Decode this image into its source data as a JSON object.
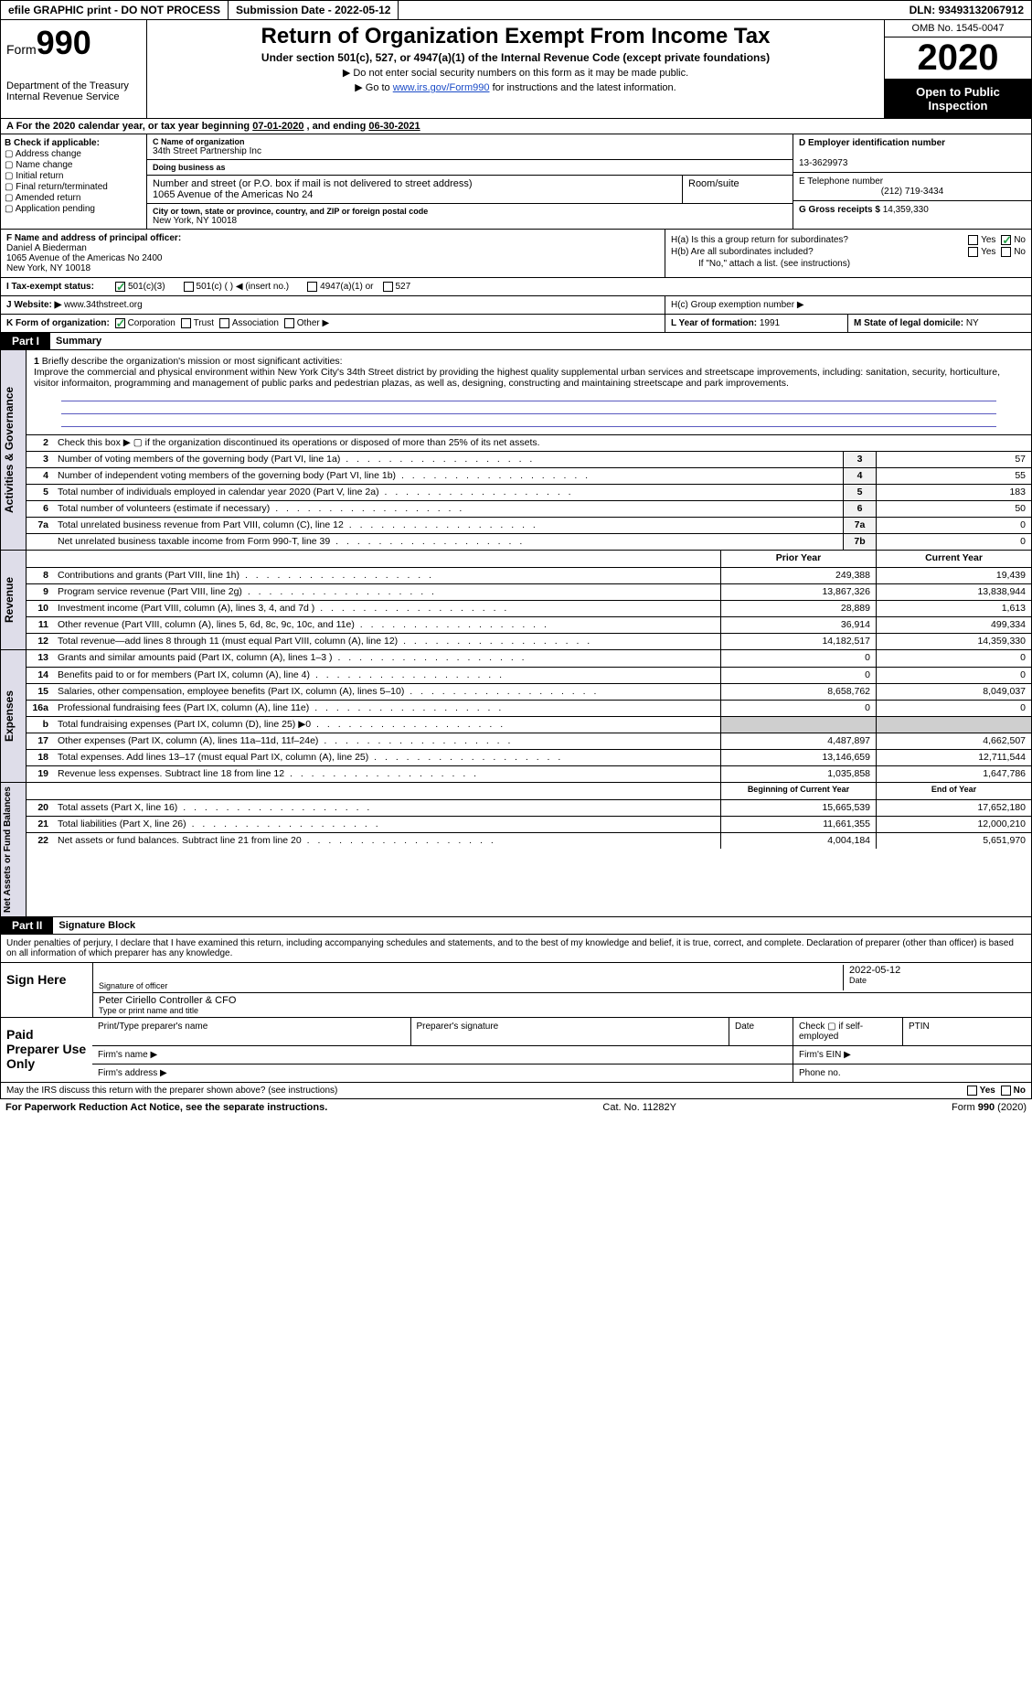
{
  "topbar": {
    "efile": "efile GRAPHIC print - DO NOT PROCESS",
    "submission_label": "Submission Date - ",
    "submission_date": "2022-05-12",
    "dln_label": "DLN: ",
    "dln": "93493132067912"
  },
  "header": {
    "form_label": "Form",
    "form_num": "990",
    "dept1": "Department of the Treasury",
    "dept2": "Internal Revenue Service",
    "title": "Return of Organization Exempt From Income Tax",
    "sub": "Under section 501(c), 527, or 4947(a)(1) of the Internal Revenue Code (except private foundations)",
    "note1": "▶ Do not enter social security numbers on this form as it may be made public.",
    "note2_pre": "▶ Go to ",
    "note2_link": "www.irs.gov/Form990",
    "note2_post": " for instructions and the latest information.",
    "omb": "OMB No. 1545-0047",
    "year": "2020",
    "open": "Open to Public Inspection"
  },
  "rowA": {
    "text_pre": "A For the 2020 calendar year, or tax year beginning ",
    "begin": "07-01-2020",
    "mid": " , and ending ",
    "end": "06-30-2021"
  },
  "secB": {
    "label": "B Check if applicable:",
    "items": [
      "Address change",
      "Name change",
      "Initial return",
      "Final return/terminated",
      "Amended return",
      "Application pending"
    ]
  },
  "secC": {
    "name_lbl": "C Name of organization",
    "name": "34th Street Partnership Inc",
    "dba_lbl": "Doing business as",
    "dba": "",
    "street_lbl": "Number and street (or P.O. box if mail is not delivered to street address)",
    "street": "1065 Avenue of the Americas No 24",
    "room_lbl": "Room/suite",
    "city_lbl": "City or town, state or province, country, and ZIP or foreign postal code",
    "city": "New York, NY  10018"
  },
  "secD": {
    "ein_lbl": "D Employer identification number",
    "ein": "13-3629973",
    "tel_lbl": "E Telephone number",
    "tel": "(212) 719-3434",
    "gross_lbl": "G Gross receipts $ ",
    "gross": "14,359,330"
  },
  "secF": {
    "lbl": "F Name and address of principal officer:",
    "name": "Daniel A Biederman",
    "addr1": "1065 Avenue of the Americas No 2400",
    "addr2": "New York, NY  10018"
  },
  "secH": {
    "ha": "H(a)  Is this a group return for subordinates?",
    "hb": "H(b)  Are all subordinates included?",
    "hb_note": "If \"No,\" attach a list. (see instructions)",
    "hc": "H(c)  Group exemption number ▶",
    "yes": "Yes",
    "no": "No"
  },
  "rowI": {
    "lbl": "I  Tax-exempt status:",
    "opt1": "501(c)(3)",
    "opt2": "501(c) (  ) ◀ (insert no.)",
    "opt3": "4947(a)(1) or",
    "opt4": "527"
  },
  "rowJ": {
    "lbl": "J Website: ▶ ",
    "val": "www.34thstreet.org"
  },
  "rowK": {
    "lbl": "K Form of organization:",
    "opts": [
      "Corporation",
      "Trust",
      "Association",
      "Other ▶"
    ],
    "L": "L Year of formation: ",
    "Lval": "1991",
    "M": "M State of legal domicile: ",
    "Mval": "NY"
  },
  "part1": {
    "hdr": "Part I",
    "title": "Summary",
    "q1": "Briefly describe the organization's mission or most significant activities:",
    "mission": "Improve the commercial and physical environment within New York City's 34th Street district by providing the highest quality supplemental urban services and streetscape improvements, including: sanitation, security, horticulture, visitor informaiton, programming and management of public parks and pedestrian plazas, as well as, designing, constructing and maintaining streetscape and park improvements.",
    "q2": "Check this box ▶ ▢  if the organization discontinued its operations or disposed of more than 25% of its net assets.",
    "rows_gov": [
      {
        "n": "3",
        "d": "Number of voting members of the governing body (Part VI, line 1a)",
        "k": "3",
        "v": "57"
      },
      {
        "n": "4",
        "d": "Number of independent voting members of the governing body (Part VI, line 1b)",
        "k": "4",
        "v": "55"
      },
      {
        "n": "5",
        "d": "Total number of individuals employed in calendar year 2020 (Part V, line 2a)",
        "k": "5",
        "v": "183"
      },
      {
        "n": "6",
        "d": "Total number of volunteers (estimate if necessary)",
        "k": "6",
        "v": "50"
      },
      {
        "n": "7a",
        "d": "Total unrelated business revenue from Part VIII, column (C), line 12",
        "k": "7a",
        "v": "0"
      },
      {
        "n": "",
        "d": "Net unrelated business taxable income from Form 990-T, line 39",
        "k": "7b",
        "v": "0"
      }
    ],
    "col_prior": "Prior Year",
    "col_current": "Current Year",
    "rows_rev": [
      {
        "n": "8",
        "d": "Contributions and grants (Part VIII, line 1h)",
        "p": "249,388",
        "c": "19,439"
      },
      {
        "n": "9",
        "d": "Program service revenue (Part VIII, line 2g)",
        "p": "13,867,326",
        "c": "13,838,944"
      },
      {
        "n": "10",
        "d": "Investment income (Part VIII, column (A), lines 3, 4, and 7d )",
        "p": "28,889",
        "c": "1,613"
      },
      {
        "n": "11",
        "d": "Other revenue (Part VIII, column (A), lines 5, 6d, 8c, 9c, 10c, and 11e)",
        "p": "36,914",
        "c": "499,334"
      },
      {
        "n": "12",
        "d": "Total revenue—add lines 8 through 11 (must equal Part VIII, column (A), line 12)",
        "p": "14,182,517",
        "c": "14,359,330"
      }
    ],
    "rows_exp": [
      {
        "n": "13",
        "d": "Grants and similar amounts paid (Part IX, column (A), lines 1–3 )",
        "p": "0",
        "c": "0"
      },
      {
        "n": "14",
        "d": "Benefits paid to or for members (Part IX, column (A), line 4)",
        "p": "0",
        "c": "0"
      },
      {
        "n": "15",
        "d": "Salaries, other compensation, employee benefits (Part IX, column (A), lines 5–10)",
        "p": "8,658,762",
        "c": "8,049,037"
      },
      {
        "n": "16a",
        "d": "Professional fundraising fees (Part IX, column (A), line 11e)",
        "p": "0",
        "c": "0"
      },
      {
        "n": "b",
        "d": "Total fundraising expenses (Part IX, column (D), line 25) ▶0",
        "p": "",
        "c": "",
        "shaded": true
      },
      {
        "n": "17",
        "d": "Other expenses (Part IX, column (A), lines 11a–11d, 11f–24e)",
        "p": "4,487,897",
        "c": "4,662,507"
      },
      {
        "n": "18",
        "d": "Total expenses. Add lines 13–17 (must equal Part IX, column (A), line 25)",
        "p": "13,146,659",
        "c": "12,711,544"
      },
      {
        "n": "19",
        "d": "Revenue less expenses. Subtract line 18 from line 12",
        "p": "1,035,858",
        "c": "1,647,786"
      }
    ],
    "col_begin": "Beginning of Current Year",
    "col_end": "End of Year",
    "rows_net": [
      {
        "n": "20",
        "d": "Total assets (Part X, line 16)",
        "p": "15,665,539",
        "c": "17,652,180"
      },
      {
        "n": "21",
        "d": "Total liabilities (Part X, line 26)",
        "p": "11,661,355",
        "c": "12,000,210"
      },
      {
        "n": "22",
        "d": "Net assets or fund balances. Subtract line 21 from line 20",
        "p": "4,004,184",
        "c": "5,651,970"
      }
    ],
    "tab_gov": "Activities & Governance",
    "tab_rev": "Revenue",
    "tab_exp": "Expenses",
    "tab_net": "Net Assets or Fund Balances"
  },
  "part2": {
    "hdr": "Part II",
    "title": "Signature Block",
    "decl": "Under penalties of perjury, I declare that I have examined this return, including accompanying schedules and statements, and to the best of my knowledge and belief, it is true, correct, and complete. Declaration of preparer (other than officer) is based on all information of which preparer has any knowledge.",
    "sign": "Sign Here",
    "sig_officer": "Signature of officer",
    "sig_date_lbl": "Date",
    "sig_date": "2022-05-12",
    "officer_name": "Peter Ciriello  Controller & CFO",
    "officer_lbl": "Type or print name and title",
    "paid": "Paid Preparer Use Only",
    "p_name": "Print/Type preparer's name",
    "p_sig": "Preparer's signature",
    "p_date": "Date",
    "p_chk": "Check ▢ if self-employed",
    "p_ptin": "PTIN",
    "firm_name": "Firm's name    ▶",
    "firm_ein": "Firm's EIN ▶",
    "firm_addr": "Firm's address ▶",
    "phone": "Phone no.",
    "discuss": "May the IRS discuss this return with the preparer shown above? (see instructions)"
  },
  "footer": {
    "left": "For Paperwork Reduction Act Notice, see the separate instructions.",
    "mid": "Cat. No. 11282Y",
    "right": "Form 990 (2020)"
  }
}
